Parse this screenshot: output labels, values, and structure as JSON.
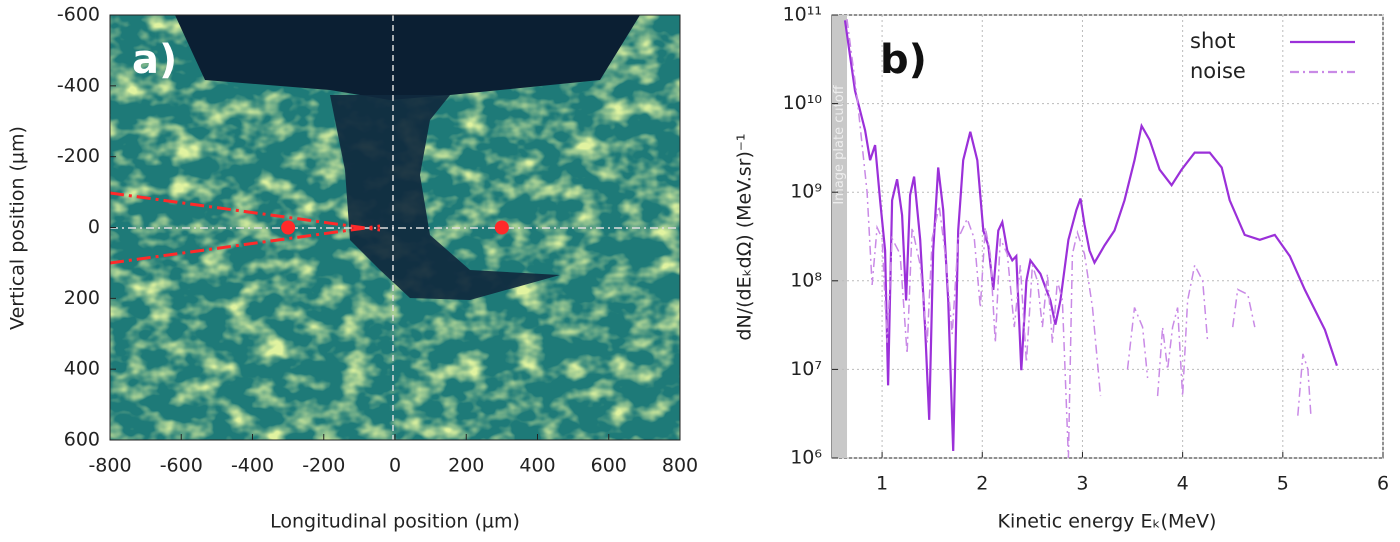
{
  "chart_data": [
    {
      "type": "image",
      "title": "a)",
      "xlabel": "Longitudinal position  (µm)",
      "ylabel": "Vertical position (µm)",
      "xlim": [
        -800,
        800
      ],
      "xticks": [
        -800,
        -600,
        -400,
        -200,
        0,
        200,
        400,
        600,
        800
      ],
      "ylim": [
        -600,
        600
      ],
      "yticks": [
        -600,
        -400,
        -200,
        0,
        200,
        400,
        600
      ],
      "y_inverted": true,
      "series": [
        {
          "x": [
            -300,
            300
          ],
          "values": [
            0,
            0
          ],
          "color": "#ff2a2a"
        }
      ]
    },
    {
      "type": "line",
      "title": "b)",
      "xlabel": "Kinetic energy Eₖ(MeV)",
      "ylabel": "dN/(dEₖdΩ) (MeV.sr)⁻¹",
      "xlim": [
        0.5,
        6
      ],
      "xticks": [
        1,
        2,
        3,
        4,
        5,
        6
      ],
      "ylim": [
        1000000,
        100000000000
      ],
      "ylog": true,
      "grid": true,
      "legend": "upper right",
      "yticks": [
        {
          "value": 1000000,
          "label": "10⁶"
        },
        {
          "value": 10000000,
          "label": "10⁷"
        },
        {
          "value": 100000000,
          "label": "10⁸"
        },
        {
          "value": 1000000000,
          "label": "10⁹"
        },
        {
          "value": 10000000000,
          "label": "10¹⁰"
        },
        {
          "value": 100000000000,
          "label": "10¹¹"
        }
      ],
      "shade": {
        "label": "Image plate cutoff",
        "range": [
          0.5,
          0.65
        ],
        "color": "#c8c8c8"
      },
      "series": [
        {
          "name": "shot",
          "color": "#9b30d9",
          "style": "solid",
          "x": [
            0.63,
            0.73,
            0.83,
            0.88,
            0.93,
            0.98,
            1.03,
            1.06,
            1.1,
            1.15,
            1.2,
            1.24,
            1.28,
            1.32,
            1.38,
            1.43,
            1.47,
            1.51,
            1.56,
            1.61,
            1.66,
            1.71,
            1.76,
            1.81,
            1.88,
            1.95,
            2.01,
            2.06,
            2.11,
            2.16,
            2.2,
            2.25,
            2.3,
            2.34,
            2.39,
            2.44,
            2.48,
            2.58,
            2.68,
            2.73,
            2.78,
            2.86,
            2.94,
            2.98,
            3.02,
            3.07,
            3.12,
            3.22,
            3.32,
            3.42,
            3.52,
            3.59,
            3.67,
            3.77,
            3.89,
            3.99,
            4.12,
            4.27,
            4.39,
            4.47,
            4.62,
            4.77,
            4.92,
            5.07,
            5.22,
            5.42,
            5.54
          ],
          "values": [
            87000000000.0,
            14000000000.0,
            5000000000.0,
            2300000000.0,
            3400000000.0,
            810000000.0,
            220000000.0,
            6600000.0,
            810000000.0,
            1400000000.0,
            550000000.0,
            60000000.0,
            930000000.0,
            1500000000.0,
            290000000.0,
            28000000.0,
            2700000.0,
            220000000.0,
            1900000000.0,
            630000000.0,
            60000000.0,
            1200000.0,
            370000000.0,
            2300000000.0,
            4800000000.0,
            2300000000.0,
            370000000.0,
            250000000.0,
            79000000.0,
            370000000.0,
            460000000.0,
            220000000.0,
            170000000.0,
            190000000.0,
            9800000.0,
            100000000.0,
            170000000.0,
            120000000.0,
            60000000.0,
            32000000.0,
            60000000.0,
            290000000.0,
            630000000.0,
            850000000.0,
            430000000.0,
            220000000.0,
            160000000.0,
            250000000.0,
            370000000.0,
            810000000.0,
            2300000000.0,
            5600000000.0,
            3900000000.0,
            1800000000.0,
            1200000000.0,
            1800000000.0,
            2800000000.0,
            2800000000.0,
            1900000000.0,
            810000000.0,
            330000000.0,
            290000000.0,
            330000000.0,
            190000000.0,
            79000000.0,
            28000000.0,
            11000000.0
          ]
        },
        {
          "name": "noise",
          "color": "#c98ae6",
          "style": "dashdot",
          "x": [
            0.65,
            0.75,
            0.85,
            0.9,
            0.95,
            1.0,
            1.05,
            1.1,
            1.18,
            1.25,
            1.3,
            1.38,
            1.45,
            1.5,
            1.57,
            1.63,
            1.7,
            1.76,
            1.85,
            1.92,
            1.98,
            2.03,
            2.08,
            2.13,
            2.18,
            2.25,
            2.32,
            2.38,
            2.44,
            2.5,
            2.55,
            2.6,
            2.65,
            2.7,
            2.75,
            2.8,
            2.86,
            2.9,
            2.95,
            3.02,
            3.1,
            3.18,
            null,
            3.45,
            3.52,
            3.6,
            3.65,
            null,
            3.75,
            3.8,
            3.85,
            3.9,
            3.95,
            4.0,
            4.05,
            4.12,
            4.2,
            4.25,
            null,
            4.5,
            4.55,
            4.65,
            4.72,
            null,
            5.15,
            5.2,
            5.25,
            5.28
          ],
          "values": [
            90000000000.0,
            12000000000.0,
            1000000000.0,
            90000000.0,
            400000000.0,
            300000000.0,
            20000000.0,
            300000000.0,
            200000000.0,
            15000000.0,
            400000000.0,
            150000000.0,
            20000000.0,
            300000000.0,
            700000000.0,
            200000000.0,
            25000000.0,
            300000000.0,
            500000000.0,
            300000000.0,
            50000000.0,
            400000000.0,
            200000000.0,
            20000000.0,
            300000000.0,
            200000000.0,
            30000000.0,
            150000000.0,
            12000000.0,
            150000000.0,
            100000000.0,
            30000000.0,
            120000000.0,
            20000000.0,
            100000000.0,
            60000000.0,
            1000000.0,
            200000000.0,
            350000000.0,
            200000000.0,
            50000000.0,
            5000000.0,
            null,
            10000000.0,
            50000000.0,
            30000000.0,
            8000000.0,
            null,
            5000000.0,
            30000000.0,
            10000000.0,
            30000000.0,
            50000000.0,
            5000000.0,
            60000000.0,
            150000000.0,
            100000000.0,
            20000000.0,
            null,
            30000000.0,
            80000000.0,
            70000000.0,
            30000000.0,
            null,
            3000000.0,
            15000000.0,
            10000000.0,
            3000000.0
          ]
        }
      ]
    }
  ]
}
